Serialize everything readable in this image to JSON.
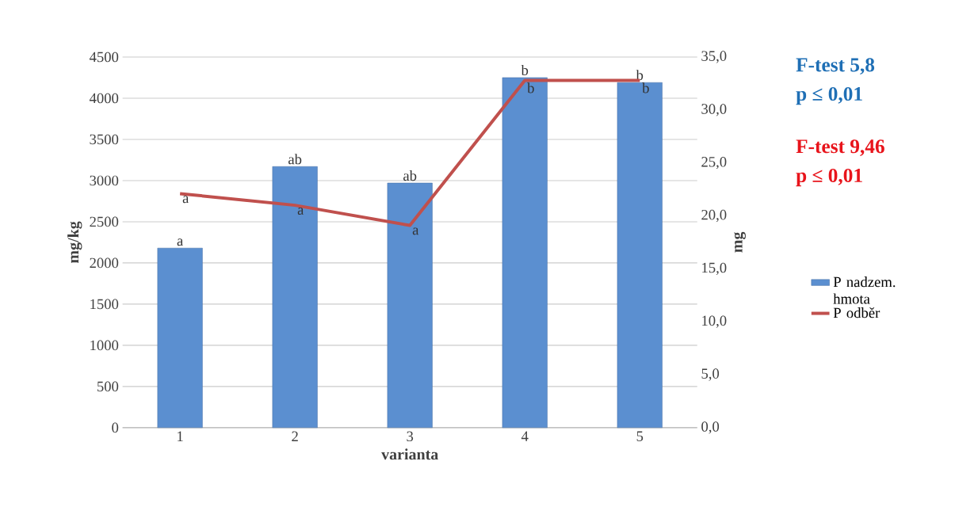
{
  "chart_data": {
    "type": "bar",
    "xlabel": "varianta",
    "ylabel": "mg/kg",
    "y2label": "mg",
    "categories": [
      "1",
      "2",
      "3",
      "4",
      "5"
    ],
    "series": [
      {
        "name": "P nadzem. hmota",
        "color": "#5b8fd0",
        "values": [
          2180,
          3170,
          2970,
          4250,
          4190
        ],
        "value_labels": [
          "a",
          "ab",
          "ab",
          "b",
          "b"
        ]
      },
      {
        "name": "P odběr",
        "type": "line",
        "axis": "y2",
        "color": "#c0504d",
        "values": [
          22.1,
          21.0,
          19.1,
          32.8,
          32.8
        ],
        "value_labels": [
          "a",
          "a",
          "a",
          "b",
          "b"
        ]
      }
    ],
    "ylim": [
      0,
      4500
    ],
    "yticks": [
      0,
      500,
      1000,
      1500,
      2000,
      2500,
      3000,
      3500,
      4000,
      4500
    ],
    "y2lim": [
      0,
      35
    ],
    "y2ticks": [
      {
        "value": 0,
        "label": "0,0"
      },
      {
        "value": 5,
        "label": "5,0"
      },
      {
        "value": 10,
        "label": "10,0"
      },
      {
        "value": 15,
        "label": "15,0"
      },
      {
        "value": 20,
        "label": "20,0"
      },
      {
        "value": 25,
        "label": "25,0"
      },
      {
        "value": 30,
        "label": "30,0"
      },
      {
        "value": 35,
        "label": "35,0"
      }
    ],
    "annotations": [
      "F-test 5,8",
      "p ≤ 0,01",
      "F-test 9,46",
      "p ≤ 0,01"
    ],
    "grid": "y",
    "legend": "right",
    "marker": "none"
  }
}
